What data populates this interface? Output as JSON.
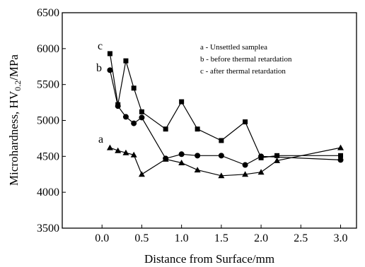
{
  "chart_data": {
    "type": "line",
    "xlabel": "Distance from Surface/mm",
    "ylabel_main": "Microhardness, HV",
    "ylabel_sub": "0.2",
    "ylabel_unit": "/MPa",
    "xlim": [
      -0.5,
      3.2
    ],
    "ylim": [
      3500,
      6500
    ],
    "xticks": [
      "0.0",
      "0.5",
      "1.0",
      "1.5",
      "2.0",
      "2.5",
      "3.0"
    ],
    "yticks": [
      "3500",
      "4000",
      "4500",
      "5000",
      "5500",
      "6000",
      "6500"
    ],
    "xtick_values": [
      0.0,
      0.5,
      1.0,
      1.5,
      2.0,
      2.5,
      3.0
    ],
    "ytick_values": [
      3500,
      4000,
      4500,
      5000,
      5500,
      6000,
      6500
    ],
    "legend": {
      "placement": "top-right",
      "entries": [
        "a - Unsettled samplea",
        "b - before thermal retardation",
        "c - after thermal retardation"
      ]
    },
    "series": [
      {
        "name": "a",
        "marker": "triangle",
        "x": [
          0.1,
          0.2,
          0.3,
          0.4,
          0.5,
          0.8,
          1.0,
          1.2,
          1.5,
          1.8,
          2.0,
          2.2,
          3.0
        ],
        "y": [
          4620,
          4580,
          4550,
          4520,
          4250,
          4460,
          4410,
          4310,
          4230,
          4250,
          4280,
          4440,
          4620
        ]
      },
      {
        "name": "b",
        "marker": "circle",
        "x": [
          0.1,
          0.2,
          0.3,
          0.4,
          0.5,
          0.8,
          1.0,
          1.2,
          1.5,
          1.8,
          2.0,
          3.0
        ],
        "y": [
          5700,
          5200,
          5050,
          4960,
          5040,
          4470,
          4530,
          4510,
          4510,
          4380,
          4500,
          4450
        ]
      },
      {
        "name": "c",
        "marker": "square",
        "x": [
          0.1,
          0.2,
          0.3,
          0.4,
          0.5,
          0.8,
          1.0,
          1.2,
          1.5,
          1.8,
          2.0,
          2.2,
          3.0
        ],
        "y": [
          5930,
          5220,
          5830,
          5450,
          5120,
          4880,
          5260,
          4880,
          4720,
          4980,
          4480,
          4510,
          4510
        ]
      }
    ],
    "series_labels": [
      "a",
      "b",
      "c"
    ]
  }
}
